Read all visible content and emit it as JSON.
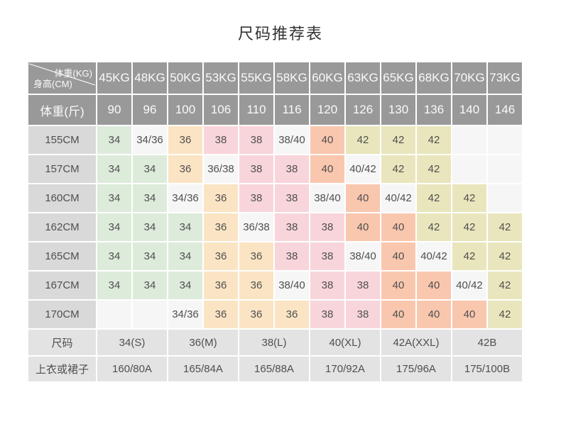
{
  "title": "尺码推荐表",
  "corner": {
    "top_label": "体重(KG)",
    "bottom_label": "身高(CM)"
  },
  "header": {
    "weight_kg": [
      "45KG",
      "48KG",
      "50KG",
      "53KG",
      "55KG",
      "58KG",
      "60KG",
      "63KG",
      "65KG",
      "68KG",
      "70KG",
      "73KG"
    ],
    "weight_jin_label": "体重(斤)",
    "weight_jin": [
      "90",
      "96",
      "100",
      "106",
      "110",
      "116",
      "120",
      "126",
      "130",
      "136",
      "140",
      "146"
    ]
  },
  "rows": [
    {
      "height": "155CM",
      "cells": [
        "34",
        "34/36",
        "36",
        "38",
        "38",
        "38/40",
        "40",
        "42",
        "42",
        "42",
        "",
        ""
      ]
    },
    {
      "height": "157CM",
      "cells": [
        "34",
        "34",
        "36",
        "36/38",
        "38",
        "38",
        "40",
        "40/42",
        "42",
        "42",
        "",
        ""
      ]
    },
    {
      "height": "160CM",
      "cells": [
        "34",
        "34",
        "34/36",
        "36",
        "38",
        "38",
        "38/40",
        "40",
        "40/42",
        "42",
        "42",
        ""
      ]
    },
    {
      "height": "162CM",
      "cells": [
        "34",
        "34",
        "34",
        "36",
        "36/38",
        "38",
        "38",
        "40",
        "40",
        "42",
        "42",
        "42"
      ]
    },
    {
      "height": "165CM",
      "cells": [
        "34",
        "34",
        "34",
        "36",
        "36",
        "38",
        "38",
        "38/40",
        "40",
        "40/42",
        "42",
        "42"
      ]
    },
    {
      "height": "167CM",
      "cells": [
        "34",
        "34",
        "34",
        "36",
        "36",
        "38/40",
        "38",
        "38",
        "40",
        "40",
        "40/42",
        "42"
      ]
    },
    {
      "height": "170CM",
      "cells": [
        "",
        "",
        "34/36",
        "36",
        "36",
        "36",
        "38",
        "38",
        "40",
        "40",
        "40",
        "42"
      ]
    }
  ],
  "footer": {
    "size_label": "尺码",
    "sizes": [
      "34(S)",
      "36(M)",
      "38(L)",
      "40(XL)",
      "42A(XXL)",
      "42B"
    ],
    "spec_label": "上衣或裙子",
    "specs": [
      "160/80A",
      "165/84A",
      "165/88A",
      "170/92A",
      "175/96A",
      "175/100B"
    ]
  },
  "colors": {
    "header_bg": "#999999",
    "label_bg": "#D9D9D9",
    "footer_bg": "#E3E3E3",
    "plain_bg": "#F6F6F6",
    "size_34": "#DDEBDB",
    "size_36": "#FBE4C4",
    "size_38": "#F8D5DB",
    "size_40": "#F9C7AE",
    "size_42": "#E9E6BD"
  }
}
